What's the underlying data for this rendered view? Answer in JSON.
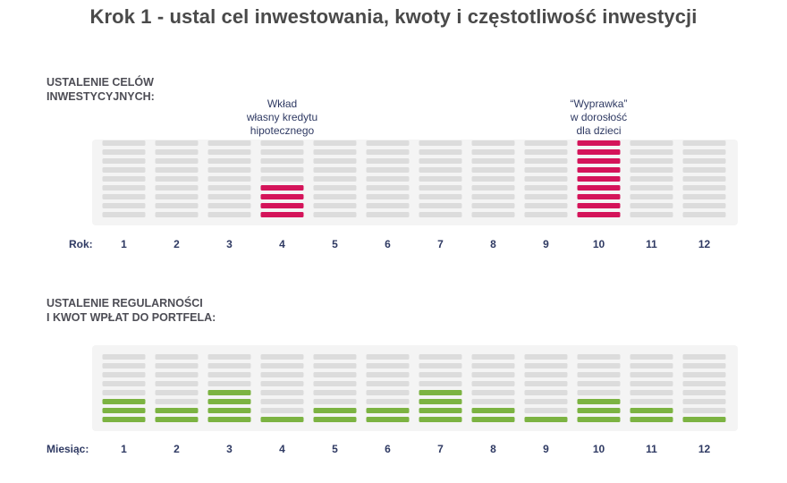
{
  "title": "Krok 1 - ustal cel inwestowania, kwoty i częstotliwość inwestycji",
  "colors": {
    "empty_segment": "#dcdcdc",
    "goal_segment": "#d4145a",
    "contribution_segment": "#7cb342",
    "panel_bg": "#f4f4f4",
    "label_text": "#2f3a63"
  },
  "chart_data": [
    {
      "type": "bar",
      "section_label": [
        "USTALENIE CELÓW",
        "INWESTYCYJNYCH:"
      ],
      "axis_label": "Rok:",
      "categories": [
        "1",
        "2",
        "3",
        "4",
        "5",
        "6",
        "7",
        "8",
        "9",
        "10",
        "11",
        "12"
      ],
      "segments_total": 9,
      "values": [
        0,
        0,
        0,
        4,
        0,
        0,
        0,
        0,
        0,
        9,
        0,
        0
      ],
      "annotations": [
        {
          "category": "4",
          "lines": [
            "Wkład",
            "własny kredytu",
            "hipotecznego"
          ]
        },
        {
          "category": "10",
          "lines": [
            "“Wyprawka”",
            "w dorosłość",
            "dla dzieci"
          ]
        }
      ]
    },
    {
      "type": "bar",
      "section_label": [
        "USTALENIE REGULARNOŚCI",
        "I KWOT WPŁAT DO PORTFELA:"
      ],
      "axis_label": "Miesiąc:",
      "categories": [
        "1",
        "2",
        "3",
        "4",
        "5",
        "6",
        "7",
        "8",
        "9",
        "10",
        "11",
        "12"
      ],
      "segments_total": 8,
      "values": [
        3,
        2,
        4,
        1,
        2,
        2,
        4,
        2,
        1,
        3,
        2,
        1
      ]
    }
  ]
}
